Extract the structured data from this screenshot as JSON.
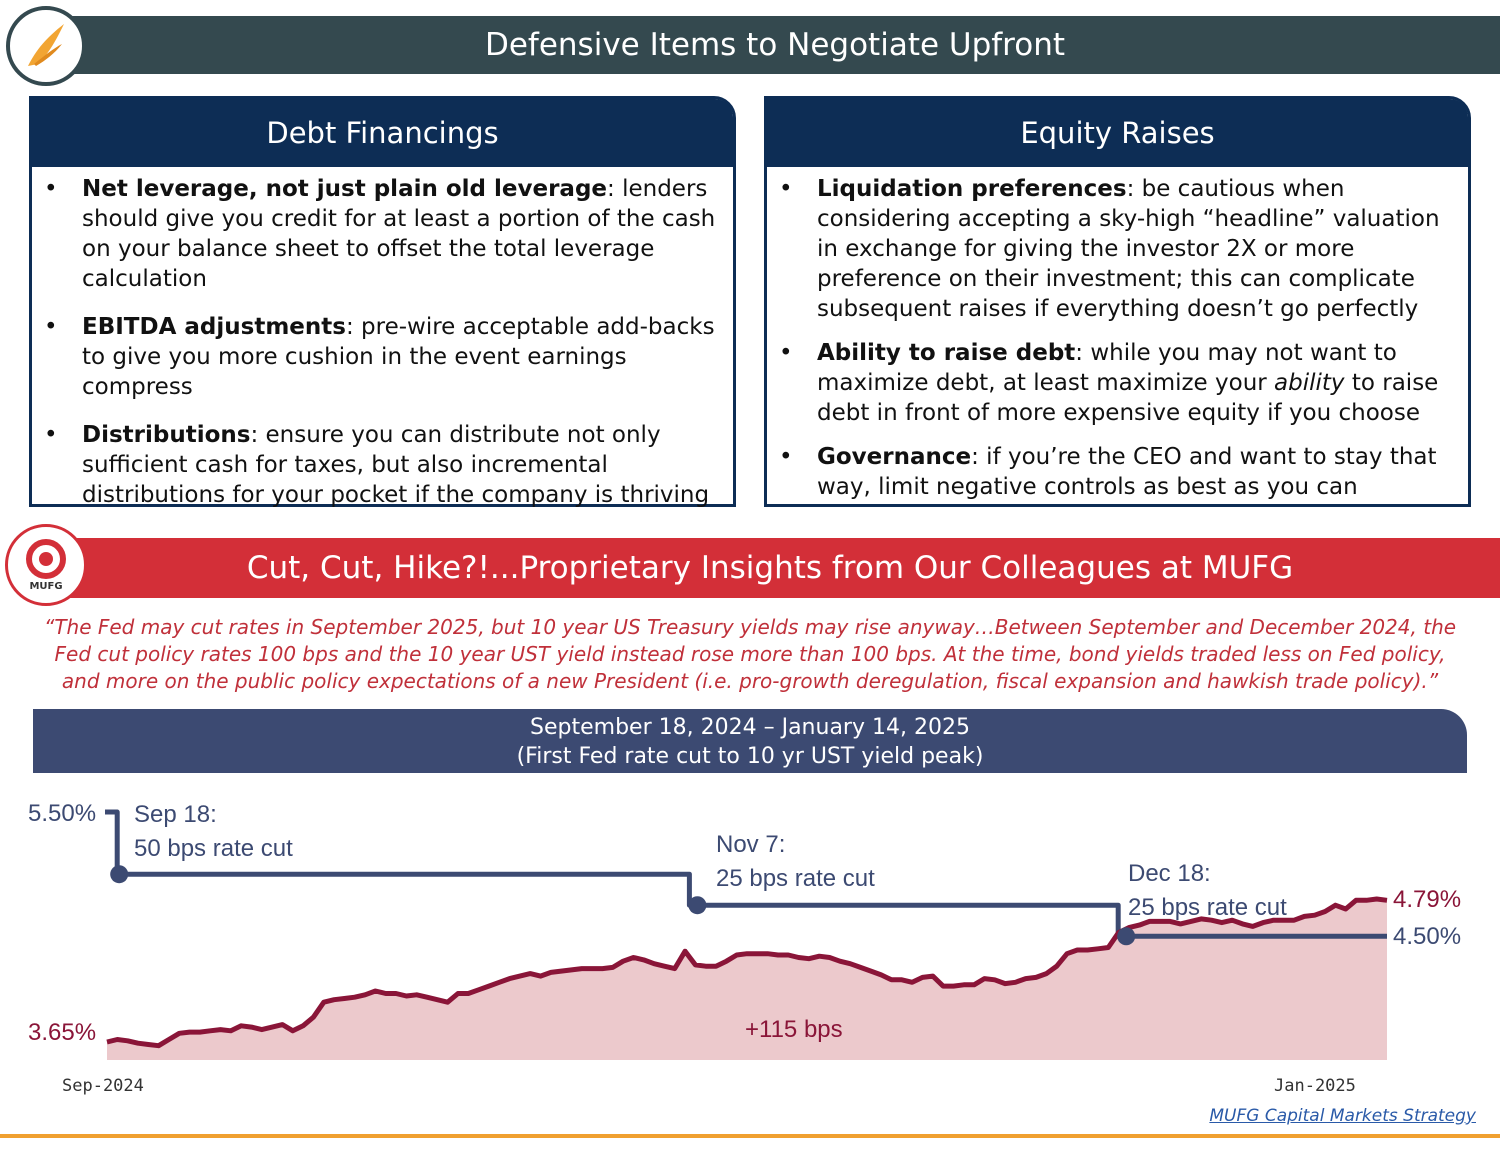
{
  "header": {
    "title": "Defensive Items to Negotiate Upfront"
  },
  "debt": {
    "title": "Debt Financings",
    "bullets": [
      {
        "term": "Net leverage, not just plain old leverage",
        "text": ": lenders should give you credit for at least a portion of the cash on your balance sheet to offset the total leverage calculation"
      },
      {
        "term": "EBITDA adjustments",
        "text": ": pre-wire acceptable add-backs to give you more cushion in the event earnings compress"
      },
      {
        "term": "Distributions",
        "text": ": ensure you can distribute not only sufficient cash for taxes, but also incremental distributions for your pocket if the company is thriving"
      }
    ]
  },
  "equity": {
    "title": "Equity Raises",
    "bullets": [
      {
        "term": "Liquidation preferences",
        "text": ": be cautious when considering accepting a sky-high “headline” valuation in exchange for giving the investor 2X or more preference on their investment; this can complicate subsequent raises if everything doesn’t go perfectly"
      },
      {
        "term": "Ability to raise debt",
        "text_a": ": while you may not want to maximize debt, at least maximize your ",
        "em": "ability",
        "text_b": "  to raise debt in front of more expensive equity if you choose"
      },
      {
        "term": "Governance",
        "text": ": if you’re the CEO and want to stay that way, limit negative controls as best as you can"
      }
    ]
  },
  "mufg": {
    "logo_text": "MUFG",
    "title": "Cut, Cut, Hike?!...Proprietary Insights from Our Colleagues at MUFG",
    "quote": "“The Fed may cut rates in September 2025, but 10 year US Treasury yields may rise anyway…Between September and December 2024, the Fed cut policy rates 100 bps and the 10 year UST yield instead rose more than 100 bps. At the time, bond yields traded less on Fed policy, and more on the public policy expectations of a new President (i.e. pro-growth deregulation, fiscal expansion and hawkish trade policy).”"
  },
  "chart_header": {
    "line1": "September 18, 2024 – January 14, 2025",
    "line2": "(First Fed rate cut to 10 yr UST yield peak)"
  },
  "chart_data": {
    "type": "line",
    "x_start_label": "Sep-2024",
    "x_end_label": "Jan-2025",
    "ylim": [
      3.4,
      5.6
    ],
    "colors": {
      "treasury": "#8a1538",
      "fed": "#3c4a72",
      "fill": "#ecc9cc"
    },
    "series": [
      {
        "key": "ust10",
        "values": [
          3.65,
          3.67,
          3.66,
          3.64,
          3.63,
          3.62,
          3.67,
          3.72,
          3.73,
          3.73,
          3.74,
          3.75,
          3.74,
          3.78,
          3.77,
          3.75,
          3.77,
          3.79,
          3.74,
          3.78,
          3.85,
          3.97,
          3.99,
          4.0,
          4.01,
          4.03,
          4.06,
          4.04,
          4.04,
          4.02,
          4.03,
          4.01,
          3.99,
          3.97,
          4.04,
          4.04,
          4.07,
          4.1,
          4.13,
          4.16,
          4.18,
          4.2,
          4.18,
          4.21,
          4.22,
          4.23,
          4.24,
          4.24,
          4.24,
          4.25,
          4.3,
          4.33,
          4.31,
          4.28,
          4.26,
          4.24,
          4.38,
          4.27,
          4.26,
          4.26,
          4.3,
          4.35,
          4.36,
          4.36,
          4.36,
          4.35,
          4.35,
          4.33,
          4.32,
          4.34,
          4.33,
          4.3,
          4.28,
          4.25,
          4.22,
          4.19,
          4.15,
          4.15,
          4.13,
          4.17,
          4.18,
          4.1,
          4.1,
          4.11,
          4.11,
          4.16,
          4.15,
          4.12,
          4.13,
          4.16,
          4.17,
          4.2,
          4.26,
          4.36,
          4.39,
          4.39,
          4.4,
          4.41,
          4.53,
          4.57,
          4.59,
          4.62,
          4.62,
          4.62,
          4.6,
          4.62,
          4.64,
          4.63,
          4.61,
          4.63,
          4.6,
          4.58,
          4.61,
          4.63,
          4.63,
          4.63,
          4.66,
          4.67,
          4.7,
          4.75,
          4.72,
          4.79,
          4.79,
          4.8,
          4.79
        ]
      },
      {
        "key": "fed",
        "segments": [
          {
            "from": 0,
            "to": 0.008,
            "value": 5.5
          },
          {
            "from": 0.008,
            "to": 0.455,
            "value": 5.0
          },
          {
            "from": 0.455,
            "to": 0.79,
            "value": 4.75
          },
          {
            "from": 0.79,
            "to": 1.0,
            "value": 4.5
          }
        ]
      }
    ],
    "labels": {
      "start_fed": "5.50%",
      "start_ust": "3.65%",
      "end_ust": "4.79%",
      "end_fed": "4.50%",
      "change": "+115 bps"
    },
    "annotations": [
      {
        "date": "Sep 18:",
        "text": "50 bps rate cut"
      },
      {
        "date": "Nov 7:",
        "text": "25 bps rate cut"
      },
      {
        "date": "Dec 18:",
        "text": "25 bps rate cut"
      }
    ]
  },
  "footer": {
    "source": "MUFG Capital Markets Strategy"
  }
}
